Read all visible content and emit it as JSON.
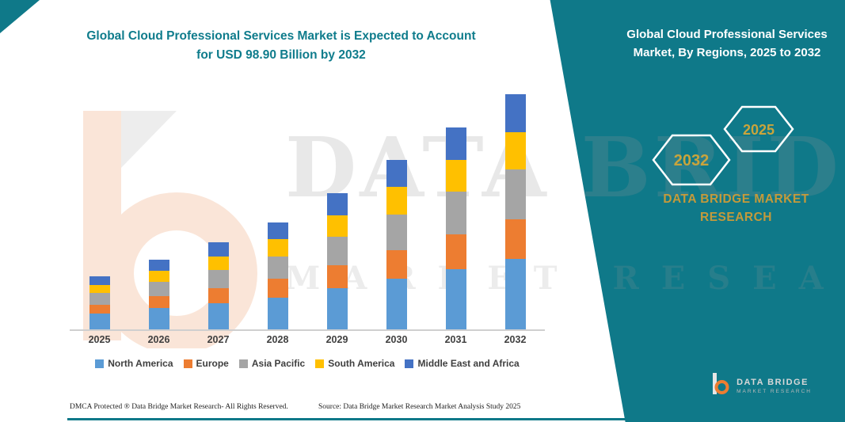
{
  "page": {
    "title_line1": "Global Cloud Professional Services Market is Expected to Account",
    "title_line2": "for USD 98.90 Billion by 2032"
  },
  "watermark": {
    "line1": "DATA BRIDGE",
    "line2": "MARKET RESEARCH"
  },
  "side_panel": {
    "heading": "Global Cloud Professional Services Market, By Regions, 2025 to 2032",
    "hexagon_left_year": "2032",
    "hexagon_right_year": "2025",
    "brand_line1": "DATA BRIDGE MARKET",
    "brand_line2": "RESEARCH",
    "logo_title": "DATA BRIDGE",
    "logo_subtitle": "MARKET RESEARCH"
  },
  "footer": {
    "dmca": "DMCA Protected ® Data Bridge Market Research-  All Rights Reserved.",
    "source": "Source: Data Bridge Market Research  Market Analysis Study 2025"
  },
  "colors": {
    "teal": "#0F7989",
    "gold": "#C9A43C",
    "axis": "#cfcfcf"
  },
  "chart_data": {
    "type": "bar",
    "stacked": true,
    "title": "Global Cloud Professional Services Market, By Regions, 2025 to 2032",
    "unit": "USD Billion",
    "categories": [
      "2025",
      "2026",
      "2027",
      "2028",
      "2029",
      "2030",
      "2031",
      "2032"
    ],
    "series": [
      {
        "name": "North America",
        "color": "#5B9BD5",
        "values": [
          6.7,
          8.9,
          11.0,
          13.5,
          17.2,
          21.4,
          25.5,
          29.7
        ]
      },
      {
        "name": "Europe",
        "color": "#ED7D31",
        "values": [
          3.8,
          5.0,
          6.2,
          7.7,
          9.7,
          12.1,
          14.5,
          16.8
        ]
      },
      {
        "name": "Asia Pacific",
        "color": "#A5A5A5",
        "values": [
          4.7,
          6.2,
          7.7,
          9.5,
          12.0,
          15.0,
          17.9,
          20.8
        ]
      },
      {
        "name": "South America",
        "color": "#FFC000",
        "values": [
          3.6,
          4.7,
          5.9,
          7.2,
          9.2,
          11.4,
          13.6,
          15.8
        ]
      },
      {
        "name": "Middle East and Africa",
        "color": "#4472C4",
        "values": [
          3.6,
          4.7,
          5.8,
          7.2,
          9.2,
          11.3,
          13.5,
          15.8
        ]
      }
    ],
    "totals": [
      22.4,
      29.5,
      36.6,
      45.1,
      57.3,
      71.2,
      85.0,
      98.9
    ],
    "ylim": [
      0,
      100
    ],
    "grid": false,
    "legend_position": "bottom"
  }
}
